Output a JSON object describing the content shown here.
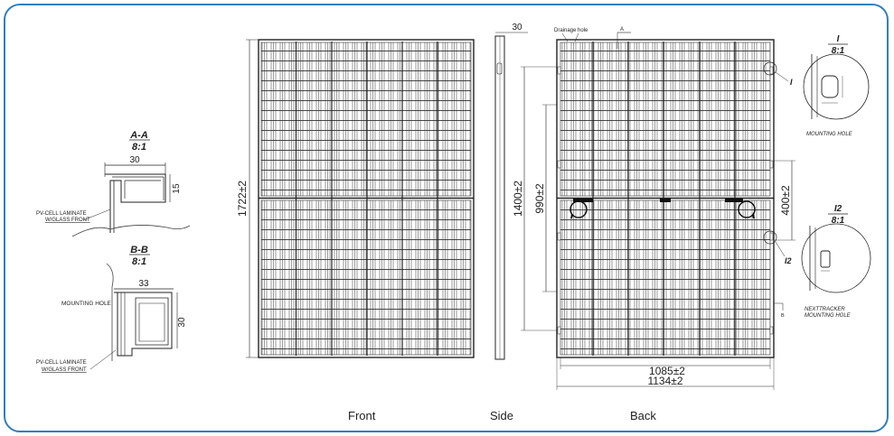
{
  "section_aa": {
    "title": "A-A",
    "scale": "8:1",
    "width": "30",
    "height": "15",
    "label_line1": "PV-CELL LAMINATE",
    "label_line2": "W/GLASS FRONT"
  },
  "section_bb": {
    "title": "B-B",
    "scale": "8:1",
    "width": "33",
    "height": "30",
    "mounting_hole_label": "MOUNTING HOLE",
    "label_line1": "PV-CELL LAMINATE",
    "label_line2": "W/GLASS FRONT"
  },
  "front": {
    "height_dim": "1722±2",
    "caption": "Front"
  },
  "side": {
    "thickness_dim": "30",
    "caption": "Side"
  },
  "back": {
    "drainage_label": "Drainage hole",
    "section_mark_a": "A",
    "section_mark_b": "B",
    "dim_1400": "1400±2",
    "dim_990": "990±2",
    "dim_400": "400±2",
    "dim_1085": "1085±2",
    "dim_1134": "1134±2",
    "caption": "Back",
    "callout_1": "I",
    "callout_2": "I2"
  },
  "detail_1": {
    "title": "I",
    "scale": "8:1",
    "label": "MOUNTING HOLE"
  },
  "detail_2": {
    "title": "I2",
    "scale": "8:1",
    "label_line1": "NEXTTRACKER",
    "label_line2": "MOUNTING HOLE"
  }
}
